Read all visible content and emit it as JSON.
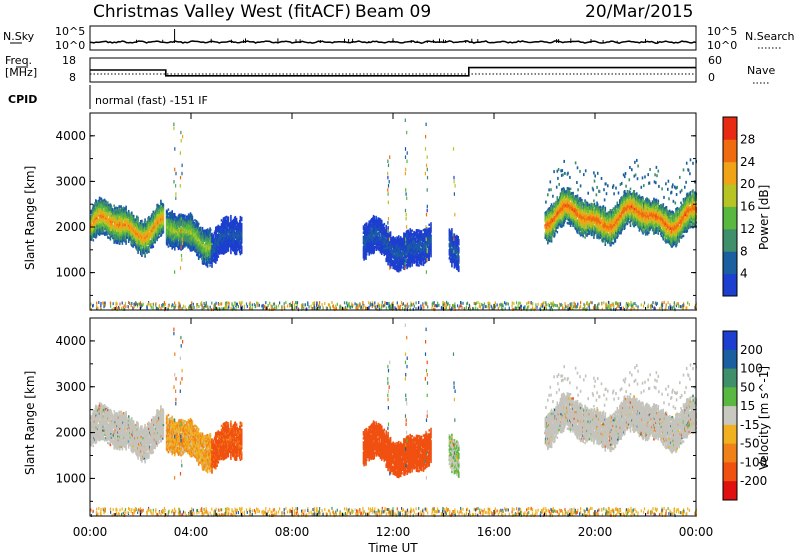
{
  "header": {
    "title": "Christmas Valley West (fitACF)",
    "beam": "Beam 09",
    "date": "20/Mar/2015"
  },
  "strip_labels": {
    "nsky": "N.Sky",
    "nsky_tick_top": "10^5",
    "nsky_tick_bottom": "10^0",
    "nsearch": "N.Search",
    "nsearch_tick_top": "10^5",
    "nsearch_tick_bottom": "10^0",
    "freq_label_1": "Freq.",
    "freq_label_2": "[MHz]",
    "freq_tick_top": "18",
    "freq_tick_bottom": "8",
    "nave": "Nave",
    "nave_tick_top": "60",
    "nave_tick_bottom": "0",
    "cpid": "CPID",
    "cpid_value": "normal (fast) -151 IF"
  },
  "colors": {
    "power": [
      "#1d3fcf",
      "#1a5fa0",
      "#3f8f6a",
      "#58b83f",
      "#b7c423",
      "#f0a317",
      "#f06b10",
      "#e82a12"
    ],
    "velocity": [
      "#1d3fcf",
      "#1a5fa0",
      "#3f8f6a",
      "#58b83f",
      "#c8c8c0",
      "#f0b020",
      "#f08018",
      "#f05010",
      "#e01010"
    ],
    "ground_scatter": "#c4c4bc"
  },
  "chart_data": [
    {
      "type": "heatmap",
      "panel": "Power",
      "xlabel": "Time UT",
      "ylabel": "Slant Range [km]",
      "colorbar_label": "Power [dB]",
      "colorbar_ticks": [
        "4",
        "8",
        "12",
        "16",
        "20",
        "24",
        "28"
      ],
      "x_ticks": [
        "00:00",
        "04:00",
        "08:00",
        "12:00",
        "16:00",
        "20:00",
        "00:00"
      ],
      "y_ticks": [
        "1000",
        "2000",
        "3000",
        "4000"
      ],
      "xlim": [
        0,
        24
      ],
      "ylim": [
        180,
        4500
      ],
      "scatter_regions": [
        {
          "t_start": 0.0,
          "t_end": 2.9,
          "r_center": 2000,
          "power": 22
        },
        {
          "t_start": 3.0,
          "t_end": 4.8,
          "r_center": 1800,
          "power": 16
        },
        {
          "t_start": 4.8,
          "t_end": 6.0,
          "r_center": 1700,
          "power": 6
        },
        {
          "t_start": 10.8,
          "t_end": 13.5,
          "r_center": 1600,
          "power": 6
        },
        {
          "t_start": 14.2,
          "t_end": 14.6,
          "r_center": 1550,
          "power": 6
        },
        {
          "t_start": 18.0,
          "t_end": 24.0,
          "r_center": 2200,
          "power": 24
        }
      ]
    },
    {
      "type": "heatmap",
      "panel": "Velocity",
      "xlabel": "Time UT",
      "ylabel": "Slant Range [km]",
      "colorbar_label": "Velocity [m s^-1]",
      "colorbar_ticks": [
        "200",
        "100",
        "50",
        "15",
        "-15",
        "-50",
        "-100",
        "-200"
      ],
      "x_ticks": [
        "00:00",
        "04:00",
        "08:00",
        "12:00",
        "16:00",
        "20:00",
        "00:00"
      ],
      "y_ticks": [
        "1000",
        "2000",
        "3000",
        "4000"
      ],
      "xlim": [
        0,
        24
      ],
      "ylim": [
        180,
        4500
      ],
      "scatter_regions": [
        {
          "t_start": 0.0,
          "t_end": 3.0,
          "r_center": 2000,
          "velocity": 0,
          "ground_scatter": true
        },
        {
          "t_start": 3.0,
          "t_end": 4.8,
          "r_center": 1800,
          "velocity": -40
        },
        {
          "t_start": 4.8,
          "t_end": 6.0,
          "r_center": 1700,
          "velocity": -120
        },
        {
          "t_start": 10.8,
          "t_end": 13.5,
          "r_center": 1600,
          "velocity": -150
        },
        {
          "t_start": 14.2,
          "t_end": 14.6,
          "r_center": 1550,
          "velocity": 10
        },
        {
          "t_start": 18.0,
          "t_end": 24.0,
          "r_center": 2200,
          "velocity": 0,
          "ground_scatter": true
        }
      ]
    },
    {
      "type": "line",
      "panel": "Frequency / Nave",
      "series": [
        {
          "name": "Freq.",
          "x": [
            0,
            3.0,
            3.0,
            15.0,
            15.0,
            24
          ],
          "values": [
            13,
            13,
            10.6,
            10.6,
            14,
            14
          ]
        },
        {
          "name": "Nave",
          "x": [
            0,
            24
          ],
          "values": [
            20,
            20
          ]
        }
      ],
      "ylim_freq": [
        8,
        18
      ],
      "ylim_nave": [
        0,
        60
      ]
    }
  ]
}
